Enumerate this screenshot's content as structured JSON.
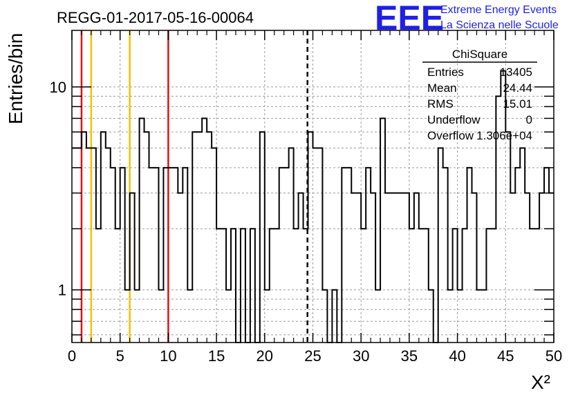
{
  "chart_data": {
    "type": "bar",
    "title": "REGG-01-2017-05-16-00064",
    "xlabel": "X²",
    "ylabel": "Entries/bin",
    "xlim": [
      0,
      50
    ],
    "ylim": [
      0.55,
      19
    ],
    "y_scale": "log",
    "grid": true,
    "x_ticks": [
      "0",
      "5",
      "10",
      "15",
      "20",
      "25",
      "30",
      "35",
      "40",
      "45",
      "50"
    ],
    "y_ticks": [
      {
        "value": 1,
        "label": "1"
      },
      {
        "value": 10,
        "label": "10"
      }
    ],
    "bin_width": 0.5,
    "values": [
      5,
      5,
      6,
      5,
      5,
      2,
      6,
      5,
      4,
      2,
      4,
      1,
      3,
      1,
      7,
      6,
      4,
      4,
      1,
      4,
      4,
      4,
      3,
      4,
      1,
      6,
      6,
      7,
      6,
      5,
      2,
      2,
      1,
      2,
      0.5,
      2,
      0.5,
      2,
      0.5,
      6,
      1,
      2,
      2,
      4,
      4,
      5,
      2,
      3,
      2,
      6,
      5,
      5,
      1,
      0.5,
      1,
      0.5,
      4,
      4,
      3,
      3,
      2,
      4,
      3,
      1,
      7,
      3,
      3,
      3,
      3,
      3,
      2,
      3,
      2,
      2,
      1,
      0.5,
      5,
      4,
      1,
      2,
      1,
      2,
      4,
      3,
      1,
      1,
      2,
      2,
      9,
      12,
      6,
      3,
      4,
      5,
      3,
      2,
      2,
      3,
      4,
      3
    ],
    "vertical_lines": [
      {
        "x": 1,
        "color": "#e01010",
        "style": "solid"
      },
      {
        "x": 2,
        "color": "#f5c000",
        "style": "solid"
      },
      {
        "x": 6,
        "color": "#f5c000",
        "style": "solid"
      },
      {
        "x": 10,
        "color": "#e01010",
        "style": "solid"
      },
      {
        "x": 24.44,
        "color": "#000000",
        "style": "dashed"
      }
    ],
    "stats_box": {
      "title": "ChiSquare",
      "rows": [
        {
          "label": "Entries",
          "value": "13405"
        },
        {
          "label": "Mean",
          "value": "24.44"
        },
        {
          "label": "RMS",
          "value": "15.01"
        },
        {
          "label": "Underflow",
          "value": "0"
        },
        {
          "label": "Overflow",
          "value": "1.306e+04"
        }
      ]
    }
  },
  "logo": {
    "mark": "EEE",
    "line1": "Extreme Energy Events",
    "line2": "La Scienza nelle Scuole"
  },
  "colors": {
    "logo_blue": "#1f1fe6",
    "red_line": "#e01010",
    "yellow_line": "#f5c000"
  }
}
